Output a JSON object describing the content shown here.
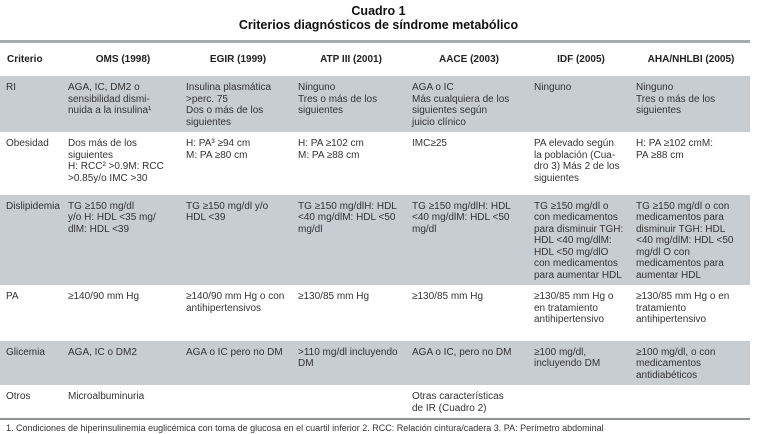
{
  "title": "Cuadro 1",
  "subtitle": "Criterios diagnósticos de síndrome metabólico",
  "headers": [
    "Criterio",
    "OMS (1998)",
    "EGIR (1999)",
    "ATP III (2001)",
    "AACE (2003)",
    "IDF (2005)",
    "AHA/NHLBI (2005)"
  ],
  "rows": [
    {
      "cells": [
        "RI",
        "AGA, IC, DM2 o\nsensibilidad dismi-\nnuida a la insulina¹",
        "Insulina plasmática\n>perc. 75\nDos o más de los\nsiguientes",
        "Ninguno\nTres o más de los\nsiguientes",
        "AGA o IC\nMás cualquiera de los\nsiguientes según\njuicio clínico",
        "Ninguno",
        "Ninguno\nTres o más de los\nsiguientes"
      ]
    },
    {
      "cells": [
        "Obesidad",
        "Dos más de los\nsiguientes\nH: RCC² >0.9M: RCC\n>0.85y/o IMC >30",
        "H: PA³ ≥94 cm\nM: PA ≥80 cm",
        "H: PA ≥102 cm\nM: PA ≥88 cm",
        "IMC≥25",
        "PA elevado según\nla población (Cua-\ndro 3) Más 2 de los\nsiguientes",
        "H: PA ≥102 cmM:\nPA ≥88 cm"
      ]
    },
    {
      "cells": [
        "Dislipidemia",
        "TG ≥150 mg/dl\ny/o H: HDL <35 mg/\ndlM: HDL <39",
        "TG ≥150 mg/dl y/o\nHDL <39",
        "TG ≥150 mg/dlH: HDL\n<40 mg/dlM: HDL <50\nmg/dl",
        "TG ≥150 mg/dlH: HDL\n<40 mg/dlM: HDL <50\nmg/dl",
        "TG ≥150 mg/dl o\ncon medicamentos\npara disminuir TGH:\nHDL <40 mg/dlM:\nHDL <50 mg/dlO\ncon medicamentos\npara aumentar HDL",
        "TG ≥150 mg/dl o con\nmedicamentos para\ndisminuir TGH: HDL\n<40 mg/dlM: HDL <50\nmg/dl O con\nmedicamentos para\naumentar HDL"
      ]
    },
    {
      "cells": [
        "PA",
        "≥140/90 mm Hg",
        "≥140/90 mm Hg o con\nantihipertensivos",
        "≥130/85 mm Hg",
        "≥130/85 mm Hg",
        "≥130/85 mm Hg o\nen tratamiento\nantihipertensivo",
        "≥130/85 mm Hg o en\ntratamiento\nantihipertensivo"
      ]
    },
    {
      "cells": [
        "Glicemia",
        "AGA, IC o DM2",
        "AGA o IC pero no DM",
        ">110 mg/dl incluyendo\nDM",
        "AGA o IC, pero no DM",
        "≥100 mg/dl,\nincluyendo DM",
        "≥100 mg/dl, o con\nmedicamentos\nantidiabéticos"
      ]
    },
    {
      "cells": [
        "Otros",
        "Microalbuminuria",
        "",
        "",
        "Otras características\nde IR (Cuadro 2)",
        "",
        ""
      ]
    }
  ],
  "footnote": "1. Condiciones de hiperinsulinemia euglicémica con toma de glucosa en el cuartil inferior  2. RCC: Relación cintura/cadera 3. PA: Perímetro abdominal",
  "colors": {
    "row_shade": "#c8cdd2",
    "rule": "#a9adb1"
  }
}
